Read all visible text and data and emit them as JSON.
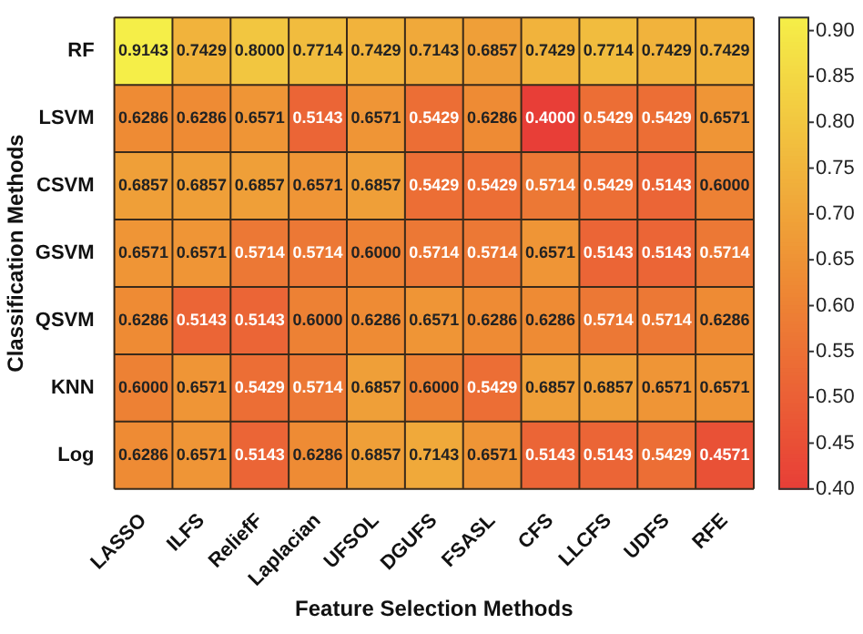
{
  "chart_data": {
    "type": "heatmap",
    "xlabel": "Feature Selection Methods",
    "ylabel": "Classification Methods",
    "categories": [
      "LASSO",
      "ILFS",
      "ReliefF",
      "Laplacian",
      "UFSOL",
      "DGUFS",
      "FSASL",
      "CFS",
      "LLCFS",
      "UDFS",
      "RFE"
    ],
    "y_categories": [
      "RF",
      "LSVM",
      "CSVM",
      "GSVM",
      "QSVM",
      "KNN",
      "Log"
    ],
    "cells": [
      [
        0.9143,
        0.7429,
        0.8,
        0.7714,
        0.7429,
        0.7143,
        0.6857,
        0.7429,
        0.7714,
        0.7429,
        0.7429
      ],
      [
        0.6286,
        0.6286,
        0.6571,
        0.5143,
        0.6571,
        0.5429,
        0.6286,
        0.4,
        0.5429,
        0.5429,
        0.6571
      ],
      [
        0.6857,
        0.6857,
        0.6857,
        0.6571,
        0.6857,
        0.5429,
        0.5429,
        0.5714,
        0.5429,
        0.5143,
        0.6
      ],
      [
        0.6571,
        0.6571,
        0.5714,
        0.5714,
        0.6,
        0.5714,
        0.5714,
        0.6571,
        0.5143,
        0.5143,
        0.5714
      ],
      [
        0.6286,
        0.5143,
        0.5143,
        0.6,
        0.6286,
        0.6571,
        0.6286,
        0.6286,
        0.5714,
        0.5714,
        0.6286
      ],
      [
        0.6,
        0.6571,
        0.5429,
        0.5714,
        0.6857,
        0.6,
        0.5429,
        0.6857,
        0.6857,
        0.6571,
        0.6571
      ],
      [
        0.6286,
        0.6571,
        0.5143,
        0.6286,
        0.6857,
        0.7143,
        0.6571,
        0.5143,
        0.5143,
        0.5429,
        0.4571
      ]
    ],
    "cell_labels": [
      [
        "0.9143",
        "0.7429",
        "0.8000",
        "0.7714",
        "0.7429",
        "0.7143",
        "0.6857",
        "0.7429",
        "0.7714",
        "0.7429",
        "0.7429"
      ],
      [
        "0.6286",
        "0.6286",
        "0.6571",
        "0.5143",
        "0.6571",
        "0.5429",
        "0.6286",
        "0.4000",
        "0.5429",
        "0.5429",
        "0.6571"
      ],
      [
        "0.6857",
        "0.6857",
        "0.6857",
        "0.6571",
        "0.6857",
        "0.5429",
        "0.5429",
        "0.5714",
        "0.5429",
        "0.5143",
        "0.6000"
      ],
      [
        "0.6571",
        "0.6571",
        "0.5714",
        "0.5714",
        "0.6000",
        "0.5714",
        "0.5714",
        "0.6571",
        "0.5143",
        "0.5143",
        "0.5714"
      ],
      [
        "0.6286",
        "0.5143",
        "0.5143",
        "0.6000",
        "0.6286",
        "0.6571",
        "0.6286",
        "0.6286",
        "0.5714",
        "0.5714",
        "0.6286"
      ],
      [
        "0.6000",
        "0.6571",
        "0.5429",
        "0.5714",
        "0.6857",
        "0.6000",
        "0.5429",
        "0.6857",
        "0.6857",
        "0.6571",
        "0.6571"
      ],
      [
        "0.6286",
        "0.6571",
        "0.5143",
        "0.6286",
        "0.6857",
        "0.7143",
        "0.6571",
        "0.5143",
        "0.5143",
        "0.5429",
        "0.4571"
      ]
    ],
    "clim": [
      0.4,
      0.9143
    ],
    "cticks": [
      {
        "value": 0.4,
        "label": "0.40"
      },
      {
        "value": 0.45,
        "label": "0.45"
      },
      {
        "value": 0.5,
        "label": "0.50"
      },
      {
        "value": 0.55,
        "label": "0.55"
      },
      {
        "value": 0.6,
        "label": "0.60"
      },
      {
        "value": 0.65,
        "label": "0.65"
      },
      {
        "value": 0.7,
        "label": "0.70"
      },
      {
        "value": 0.75,
        "label": "0.75"
      },
      {
        "value": 0.8,
        "label": "0.80"
      },
      {
        "value": 0.85,
        "label": "0.85"
      },
      {
        "value": 0.9,
        "label": "0.90"
      }
    ]
  }
}
